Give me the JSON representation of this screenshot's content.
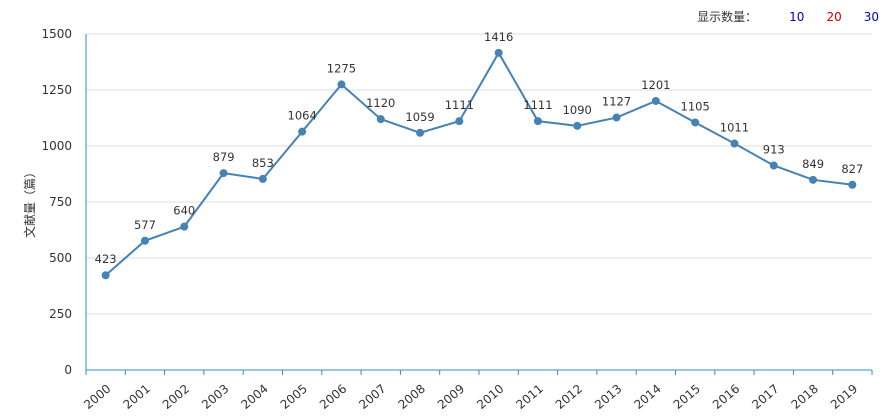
{
  "controls": {
    "label": "显示数量：",
    "options": [
      {
        "label": "10",
        "color": "#0000cc"
      },
      {
        "label": "20",
        "color": "#cc0000"
      },
      {
        "label": "30",
        "color": "#0000cc"
      }
    ]
  },
  "colors": {
    "line": "#4682b4",
    "grid": "#dcdcdc",
    "axis": "#2f8fc9"
  },
  "chart_data": {
    "type": "line",
    "title": "",
    "xlabel": "",
    "ylabel": "文献量（篇）",
    "ylim": [
      0,
      1500
    ],
    "yticks": [
      0,
      250,
      500,
      750,
      1000,
      1250,
      1500
    ],
    "grid": true,
    "categories": [
      "2000",
      "2001",
      "2002",
      "2003",
      "2004",
      "2005",
      "2006",
      "2007",
      "2008",
      "2009",
      "2010",
      "2011",
      "2012",
      "2013",
      "2014",
      "2015",
      "2016",
      "2017",
      "2018",
      "2019"
    ],
    "series": [
      {
        "values": [
          423,
          577,
          640,
          879,
          853,
          1064,
          1275,
          1120,
          1059,
          1111,
          1416,
          1111,
          1090,
          1127,
          1201,
          1105,
          1011,
          913,
          849,
          827
        ]
      }
    ]
  }
}
